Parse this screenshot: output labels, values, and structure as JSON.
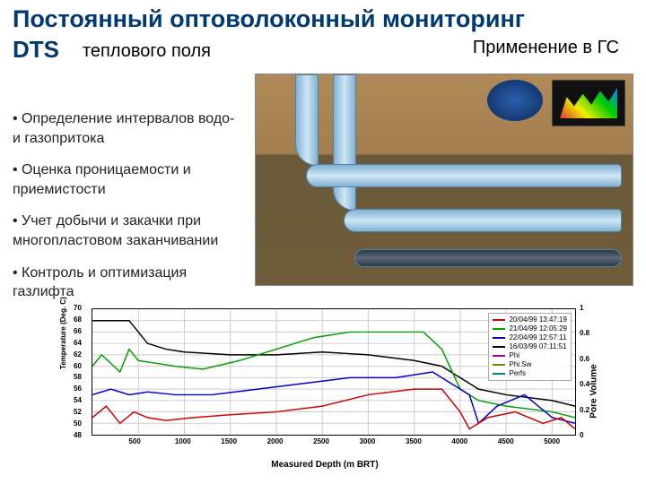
{
  "title": "Постоянный оптоволоконный мониторинг",
  "dts": "DTS",
  "subtitle": "теплового поля",
  "application": "Применение в ГС",
  "bullets": [
    "• Определение интервалов водо- и газопритока",
    "• Оценка проницаемости и приемистости",
    "• Учет добычи и закачки при многопластовом заканчивании",
    "• Контроль и оптимизация газлифта"
  ],
  "chart": {
    "type": "line",
    "xlabel": "Measured Depth (m BRT)",
    "ylabel_left": "Temperature (Deg. C)",
    "ylabel_right": "Pore Volume",
    "xlim": [
      0,
      5250
    ],
    "xtick_step": 500,
    "ylim_left": [
      48,
      70
    ],
    "ytick_left_step": 2,
    "ylim_right": [
      0,
      1
    ],
    "ytick_right_step": 0.2,
    "background_color": "#ffffff",
    "grid_color": "#d8d8d8",
    "axis_color": "#000000",
    "line_width": 1.5,
    "legend_position": "top-right",
    "legend": [
      {
        "label": "20/04/99 13:47:19",
        "color": "#d00000"
      },
      {
        "label": "21/04/99 12:05:29",
        "color": "#00a000"
      },
      {
        "label": "22/04/99 12:57:11",
        "color": "#0000d0"
      },
      {
        "label": "16/03/99 07:11:51",
        "color": "#000000"
      },
      {
        "label": "Phi",
        "color": "#a000a0"
      },
      {
        "label": "Phi.Sw",
        "color": "#808000"
      },
      {
        "label": "Perfs",
        "color": "#008080"
      }
    ],
    "series": {
      "black": {
        "color": "#000000",
        "x": [
          0,
          200,
          400,
          500,
          600,
          800,
          1000,
          1500,
          2000,
          2500,
          3000,
          3500,
          3800,
          4000,
          4200,
          4500,
          5000,
          5250
        ],
        "y": [
          68,
          68,
          68,
          66,
          64,
          63,
          62.5,
          62,
          62,
          62.5,
          62,
          61,
          60,
          58,
          56,
          55,
          54,
          53
        ]
      },
      "green": {
        "color": "#00a000",
        "x": [
          0,
          100,
          300,
          400,
          500,
          700,
          900,
          1200,
          1600,
          2000,
          2400,
          2800,
          3200,
          3600,
          3800,
          4000,
          4200,
          4500,
          5000,
          5250
        ],
        "y": [
          60,
          62,
          59,
          63,
          61,
          60.5,
          60,
          59.5,
          61,
          63,
          65,
          66,
          66,
          66,
          63,
          56,
          54,
          53,
          52,
          51
        ]
      },
      "blue": {
        "color": "#0000d0",
        "x": [
          0,
          200,
          400,
          600,
          900,
          1300,
          1800,
          2300,
          2800,
          3300,
          3700,
          3900,
          4100,
          4200,
          4400,
          4700,
          5000,
          5250
        ],
        "y": [
          55,
          56,
          55,
          55.5,
          55,
          55,
          56,
          57,
          58,
          58,
          59,
          57,
          55,
          50,
          53,
          55,
          51,
          50
        ]
      },
      "red": {
        "color": "#d00000",
        "x": [
          0,
          150,
          300,
          450,
          600,
          800,
          1100,
          1500,
          2000,
          2500,
          3000,
          3500,
          3800,
          4000,
          4100,
          4300,
          4600,
          4900,
          5100,
          5250
        ],
        "y": [
          51,
          53,
          50,
          52,
          51,
          50.5,
          51,
          51.5,
          52,
          53,
          55,
          56,
          56,
          52,
          49,
          51,
          52,
          50,
          51,
          49
        ]
      }
    }
  }
}
